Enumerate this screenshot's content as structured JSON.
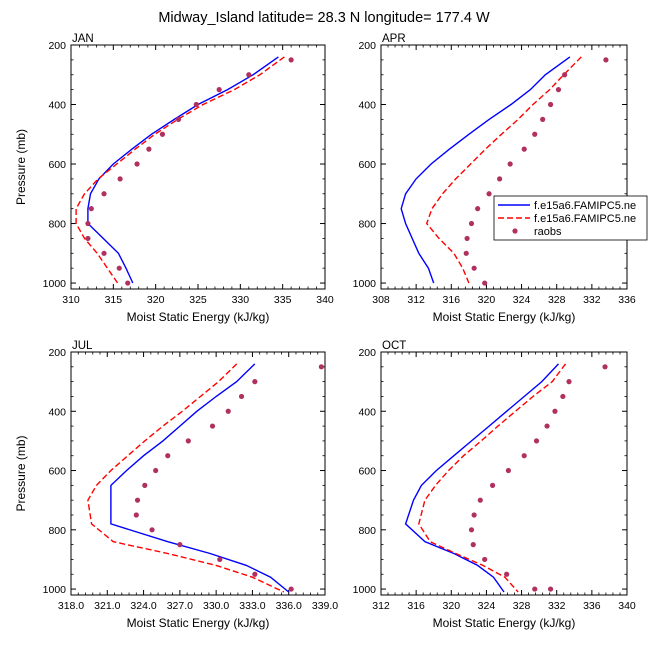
{
  "figure": {
    "title": "Midway_Island  latitude= 28.3 N longitude= 177.4 W"
  },
  "legend": {
    "entries": [
      {
        "label": "f.e15a6.FAMIPC5.ne",
        "color": "#0000ff",
        "style": "solid"
      },
      {
        "label": "f.e15a6.FAMIPC5.ne",
        "color": "#ff0000",
        "style": "dashed"
      },
      {
        "label": "raobs",
        "color": "#b03060",
        "style": "dot"
      }
    ]
  },
  "chart_data": [
    {
      "type": "line",
      "panel": "JAN",
      "title": "JAN",
      "xlabel": "Moist Static Energy (kJ/kg)",
      "ylabel": "Pressure (mb)",
      "xlim": [
        310,
        340
      ],
      "ylim": [
        1020,
        200
      ],
      "y_reversed": true,
      "xticks": [
        "310",
        "315",
        "320",
        "325",
        "330",
        "335",
        "340"
      ],
      "yticks": [
        "200",
        "400",
        "600",
        "800",
        "1000"
      ],
      "series": [
        {
          "color": "#0000ff",
          "style": "solid",
          "x": [
            334.5,
            331.5,
            328.5,
            325,
            322.2,
            319.5,
            317.2,
            315,
            313.3,
            312.3,
            312,
            312,
            313.8,
            315.6,
            316.5,
            317.3
          ],
          "y": [
            240,
            300,
            350,
            400,
            450,
            500,
            550,
            600,
            650,
            700,
            750,
            800,
            850,
            900,
            950,
            1000
          ]
        },
        {
          "color": "#ff0000",
          "style": "dashed",
          "x": [
            335.2,
            332.3,
            329.3,
            325.6,
            322.6,
            319.9,
            317.6,
            315.4,
            313.2,
            311.6,
            310.6,
            310.6,
            311.6,
            313.1,
            314.3,
            315.5
          ],
          "y": [
            240,
            300,
            350,
            400,
            450,
            500,
            550,
            600,
            650,
            700,
            750,
            800,
            850,
            900,
            950,
            1000
          ]
        },
        {
          "color": "#b03060",
          "style": "dot",
          "x": [
            336,
            331,
            327.5,
            324.8,
            322.7,
            320.8,
            319.2,
            317.8,
            315.8,
            313.9,
            312.4,
            312,
            312,
            313.9,
            315.7,
            316.7
          ],
          "y": [
            250,
            300,
            350,
            400,
            450,
            500,
            550,
            600,
            650,
            700,
            750,
            800,
            850,
            900,
            950,
            1000
          ]
        }
      ]
    },
    {
      "type": "line",
      "panel": "APR",
      "title": "APR",
      "xlabel": "Moist Static Energy (kJ/kg)",
      "ylabel": "",
      "xlim": [
        308,
        336
      ],
      "ylim": [
        1020,
        200
      ],
      "y_reversed": true,
      "xticks": [
        "308",
        "312",
        "316",
        "320",
        "324",
        "328",
        "332",
        "336"
      ],
      "yticks": [
        "200",
        "400",
        "600",
        "800",
        "1000"
      ],
      "series": [
        {
          "color": "#0000ff",
          "style": "solid",
          "x": [
            329.5,
            326.7,
            325,
            322.8,
            320.3,
            318,
            315.8,
            313.7,
            312,
            310.8,
            310.3,
            310.8,
            312.3,
            313.4,
            314
          ],
          "y": [
            240,
            300,
            350,
            400,
            450,
            500,
            550,
            600,
            650,
            700,
            750,
            800,
            900,
            950,
            1000
          ]
        },
        {
          "color": "#ff0000",
          "style": "dashed",
          "x": [
            330.8,
            328.8,
            327.2,
            325.3,
            323.6,
            321.7,
            319.9,
            318.2,
            316.5,
            315,
            313.8,
            313.2,
            314.6,
            316.3,
            317.3,
            318
          ],
          "y": [
            240,
            300,
            350,
            400,
            450,
            500,
            550,
            600,
            650,
            700,
            750,
            800,
            850,
            900,
            950,
            1000
          ]
        },
        {
          "color": "#b03060",
          "style": "dot",
          "x": [
            333.6,
            328.9,
            328.2,
            327.3,
            326.4,
            325.5,
            324.3,
            322.7,
            321.5,
            320.3,
            319,
            318.3,
            317.8,
            317.7,
            318.6,
            319.8
          ],
          "y": [
            250,
            300,
            350,
            400,
            450,
            500,
            550,
            600,
            650,
            700,
            750,
            800,
            850,
            900,
            950,
            1000
          ]
        }
      ]
    },
    {
      "type": "line",
      "panel": "JUL",
      "title": "JUL",
      "xlabel": "Moist Static Energy (kJ/kg)",
      "ylabel": "Pressure (mb)",
      "xlim": [
        318,
        339
      ],
      "ylim": [
        1020,
        200
      ],
      "y_reversed": true,
      "xticks": [
        "318.0",
        "321.0",
        "324.0",
        "327.0",
        "330.0",
        "333.0",
        "336.0",
        "339.0"
      ],
      "yticks": [
        "200",
        "400",
        "600",
        "800",
        "1000"
      ],
      "series": [
        {
          "color": "#0000ff",
          "style": "solid",
          "x": [
            333.2,
            331.7,
            330,
            328.4,
            327,
            325.6,
            324,
            322.6,
            321.3,
            321.3,
            321.3,
            326,
            329.5,
            332.5,
            334.5,
            336
          ],
          "y": [
            240,
            300,
            350,
            400,
            450,
            500,
            550,
            600,
            650,
            700,
            780,
            840,
            880,
            920,
            960,
            1010
          ]
        },
        {
          "color": "#ff0000",
          "style": "dashed",
          "x": [
            331.7,
            330.2,
            328.7,
            327.2,
            325.6,
            324.1,
            322.7,
            321.3,
            320.1,
            319.4,
            319.7,
            321.5,
            326,
            330,
            333,
            335.6
          ],
          "y": [
            240,
            300,
            350,
            400,
            450,
            500,
            550,
            600,
            650,
            700,
            780,
            840,
            880,
            920,
            960,
            1010
          ]
        },
        {
          "color": "#b03060",
          "style": "dot",
          "x": [
            338.7,
            333.2,
            332.1,
            331,
            329.7,
            327.7,
            326,
            325,
            324.1,
            323.5,
            323.4,
            324.7,
            327,
            330.3,
            333.2,
            336.2
          ],
          "y": [
            250,
            300,
            350,
            400,
            450,
            500,
            550,
            600,
            650,
            700,
            750,
            800,
            850,
            900,
            950,
            1000
          ]
        }
      ]
    },
    {
      "type": "line",
      "panel": "OCT",
      "title": "OCT",
      "xlabel": "Moist Static Energy (kJ/kg)",
      "ylabel": "",
      "xlim": [
        312,
        340
      ],
      "ylim": [
        1020,
        200
      ],
      "y_reversed": true,
      "xticks": [
        "312",
        "316",
        "320",
        "324",
        "328",
        "332",
        "336",
        "340"
      ],
      "yticks": [
        "200",
        "400",
        "600",
        "800",
        "1000"
      ],
      "series": [
        {
          "color": "#0000ff",
          "style": "solid",
          "x": [
            332.2,
            330.3,
            328.3,
            326.3,
            324.3,
            322.3,
            320.3,
            318.3,
            316.6,
            315.7,
            314.8,
            317,
            320.3,
            323,
            324.8,
            326
          ],
          "y": [
            240,
            300,
            350,
            400,
            450,
            500,
            550,
            600,
            650,
            700,
            780,
            840,
            880,
            920,
            960,
            1010
          ]
        },
        {
          "color": "#ff0000",
          "style": "dashed",
          "x": [
            333,
            331.5,
            329.3,
            327.3,
            325.3,
            323.4,
            321.4,
            319.7,
            318.2,
            317,
            316.3,
            317.6,
            320.5,
            323.6,
            326.1,
            327.6
          ],
          "y": [
            240,
            300,
            350,
            400,
            450,
            500,
            550,
            600,
            650,
            700,
            780,
            840,
            880,
            920,
            960,
            1010
          ]
        },
        {
          "color": "#b03060",
          "style": "dot",
          "x": [
            337.5,
            333.4,
            332.7,
            331.8,
            330.9,
            329.7,
            328.3,
            326.5,
            324.7,
            323.3,
            322.6,
            322.3,
            322.5,
            323.8,
            326.3,
            329.5,
            331.3
          ],
          "y": [
            250,
            300,
            350,
            400,
            450,
            500,
            550,
            600,
            650,
            700,
            750,
            800,
            850,
            900,
            950,
            1000,
            1000
          ]
        }
      ]
    }
  ]
}
